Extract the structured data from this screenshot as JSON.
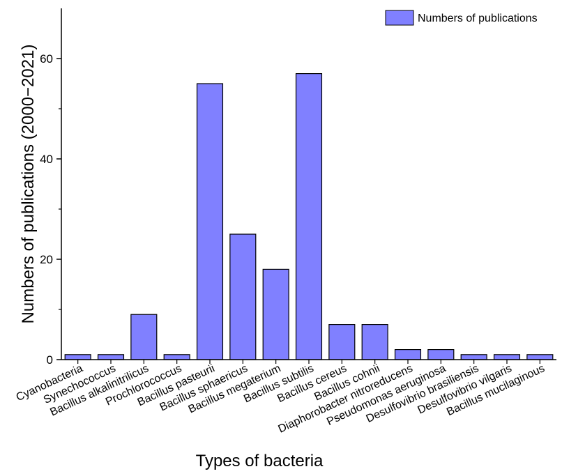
{
  "chart_data": {
    "type": "bar",
    "title": "",
    "xlabel": "Types of bacteria",
    "ylabel": "Numbers of publications (2000−2021)",
    "ylim": [
      0,
      70
    ],
    "yticks": [
      "0",
      "20",
      "40",
      "60"
    ],
    "grid": false,
    "legend_position": "top-right",
    "categories": [
      "Cyanobacteria",
      "Synechococcus",
      "Bacillus alkalinitrilicus",
      "Prochlorococcus",
      "Bacillus pasteurii",
      "Bacillus sphaericus",
      "Bacillus megaterium",
      "Bacillus subtilis",
      "Bacillus cereus",
      "Bacillus cohnii",
      "Diaphorobacter nitroreducens",
      "Pseudomonas aeruginosa",
      "Desulfovibrio brasiliensis",
      "Desulfovibrio vilgaris",
      "Bacillus mucilaginous"
    ],
    "series": [
      {
        "name": "Numbers of publications",
        "values": [
          1,
          1,
          9,
          1,
          55,
          25,
          18,
          57,
          7,
          7,
          2,
          2,
          1,
          1,
          1
        ]
      }
    ],
    "colors": {
      "bar_fill": "#8080ff",
      "bar_stroke": "#000000"
    }
  }
}
